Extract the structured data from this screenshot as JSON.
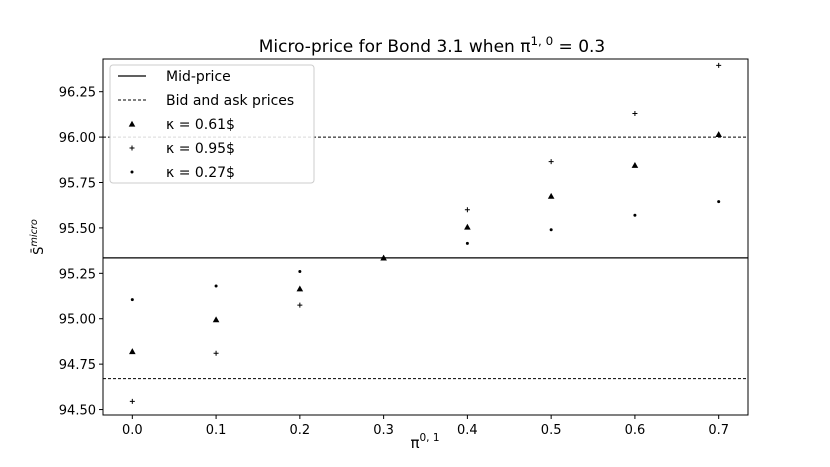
{
  "chart_data": {
    "type": "scatter",
    "title": "Micro-price for Bond 3.1 when π^{1,0} = 0.3",
    "title_parts": {
      "main": "Micro-price for Bond 3.1 when π",
      "sup": "1, 0",
      "tail": " = 0.3"
    },
    "xlabel_parts": {
      "main": "π",
      "sup": "0, 1"
    },
    "ylabel_parts": {
      "main": "S̄",
      "sup": "micro"
    },
    "xlim": [
      -0.035,
      0.735
    ],
    "ylim": [
      94.47,
      96.43
    ],
    "x_ticks": [
      0.0,
      0.1,
      0.2,
      0.3,
      0.4,
      0.5,
      0.6,
      0.7
    ],
    "x_tick_labels": [
      "0.0",
      "0.1",
      "0.2",
      "0.3",
      "0.4",
      "0.5",
      "0.6",
      "0.7"
    ],
    "y_ticks": [
      94.5,
      94.75,
      95.0,
      95.25,
      95.5,
      95.75,
      96.0,
      96.25
    ],
    "y_tick_labels": [
      "94.50",
      "94.75",
      "95.00",
      "95.25",
      "95.50",
      "95.75",
      "96.00",
      "96.25"
    ],
    "grid": false,
    "legend_position": "top-left",
    "hlines": [
      {
        "name": "Mid-price",
        "y": 95.335,
        "style": "solid"
      },
      {
        "name": "Bid and ask prices",
        "y": 96.0,
        "style": "dashed"
      },
      {
        "name": "Bid and ask prices",
        "y": 94.67,
        "style": "dashed"
      }
    ],
    "legend": [
      {
        "label": "Mid-price",
        "marker": "solid-line"
      },
      {
        "label": "Bid and ask prices",
        "marker": "dashed-line"
      },
      {
        "label": "κ = 0.61$",
        "marker": "triangle"
      },
      {
        "label": "κ = 0.95$",
        "marker": "plus"
      },
      {
        "label": "κ = 0.27$",
        "marker": "dot"
      }
    ],
    "series": [
      {
        "name": "κ = 0.61$",
        "marker": "triangle",
        "x": [
          0.0,
          0.1,
          0.2,
          0.3,
          0.4,
          0.5,
          0.6,
          0.7
        ],
        "y": [
          94.82,
          94.995,
          95.165,
          95.335,
          95.505,
          95.675,
          95.845,
          96.015
        ]
      },
      {
        "name": "κ = 0.95$",
        "marker": "plus",
        "x": [
          0.0,
          0.1,
          0.2,
          0.3,
          0.4,
          0.5,
          0.6,
          0.7
        ],
        "y": [
          94.545,
          94.81,
          95.075,
          95.335,
          95.6,
          95.865,
          96.13,
          96.395
        ]
      },
      {
        "name": "κ = 0.27$",
        "marker": "dot",
        "x": [
          0.0,
          0.1,
          0.2,
          0.3,
          0.4,
          0.5,
          0.6,
          0.7
        ],
        "y": [
          95.105,
          95.18,
          95.26,
          95.335,
          95.415,
          95.49,
          95.57,
          95.645
        ]
      }
    ]
  }
}
